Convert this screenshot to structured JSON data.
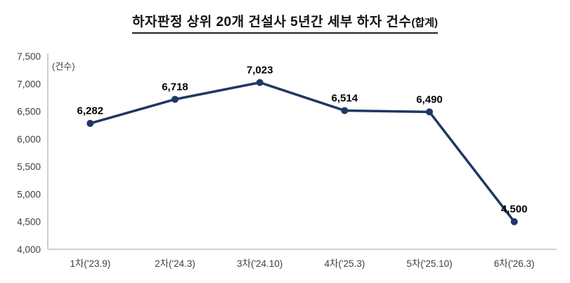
{
  "title": {
    "main": "하자판정 상위 20개 건설사 5년간 세부 하자 건수",
    "suffix": "(합계)"
  },
  "unit_label": "(건수)",
  "chart_data": {
    "type": "line",
    "title": "하자판정 상위 20개 건설사 5년간 세부 하자 건수(합계)",
    "categories": [
      "1차('23.9)",
      "2차('24.3)",
      "3차('24.10)",
      "4차('25.3)",
      "5차('25.10)",
      "6차('26.3)"
    ],
    "values": [
      6282,
      6718,
      7023,
      6514,
      6490,
      4500
    ],
    "value_labels": [
      "6,282",
      "6,718",
      "7,023",
      "6,514",
      "6,490",
      "4,500"
    ],
    "xlabel": "",
    "ylabel": "(건수)",
    "ylim": [
      4000,
      7500
    ],
    "ytick_step": 500,
    "yticks": [
      "7,500",
      "7,000",
      "6,500",
      "6,000",
      "5,500",
      "5,000",
      "4,500",
      "4,000"
    ],
    "grid": false,
    "legend": "none",
    "line_color": "#1f3864",
    "marker": "circle",
    "axis_color": "#bfbfbf"
  }
}
